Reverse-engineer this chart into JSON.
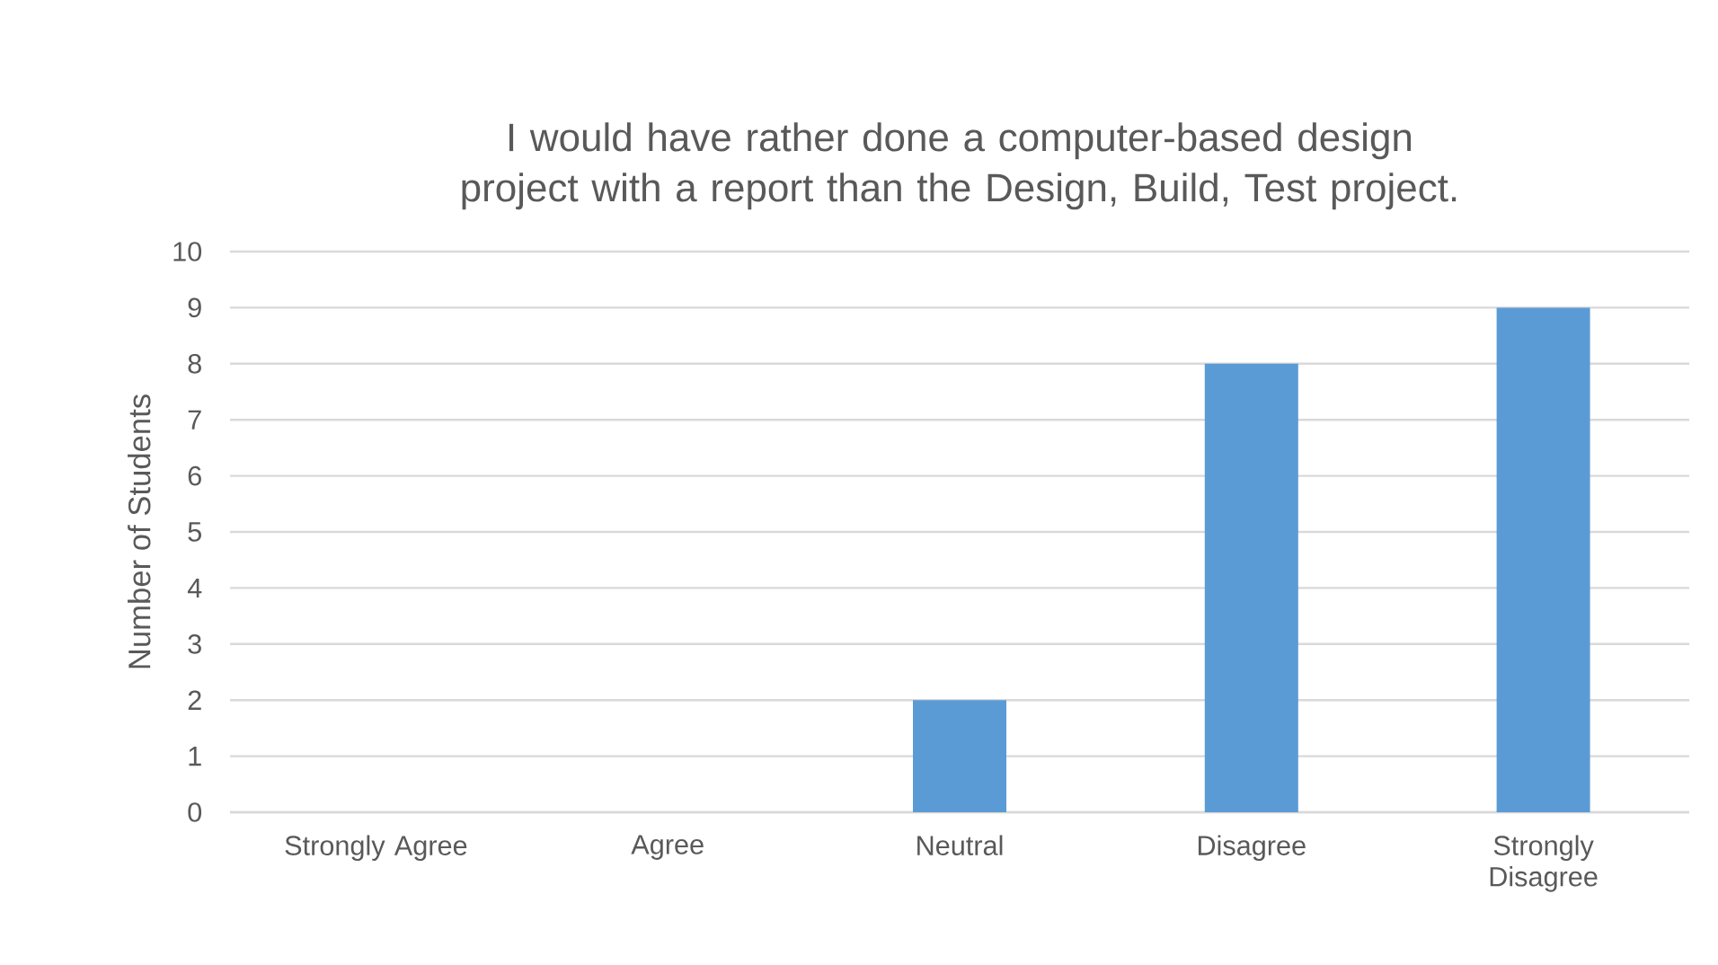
{
  "chart_data": {
    "type": "bar",
    "title": "I would have rather done a computer-based design project with a report than the Design, Build, Test project.",
    "ylabel": "Number of Students",
    "categories": [
      "Strongly Agree",
      "Agree",
      "Neutral",
      "Disagree",
      "Strongly Disagree"
    ],
    "values": [
      0,
      0,
      2,
      8,
      9
    ],
    "color": "#5b9bd5",
    "ylim": [
      0,
      10
    ],
    "yticks": [
      0,
      1,
      2,
      3,
      4,
      5,
      6,
      7,
      8,
      9,
      10
    ],
    "grid": "y"
  }
}
